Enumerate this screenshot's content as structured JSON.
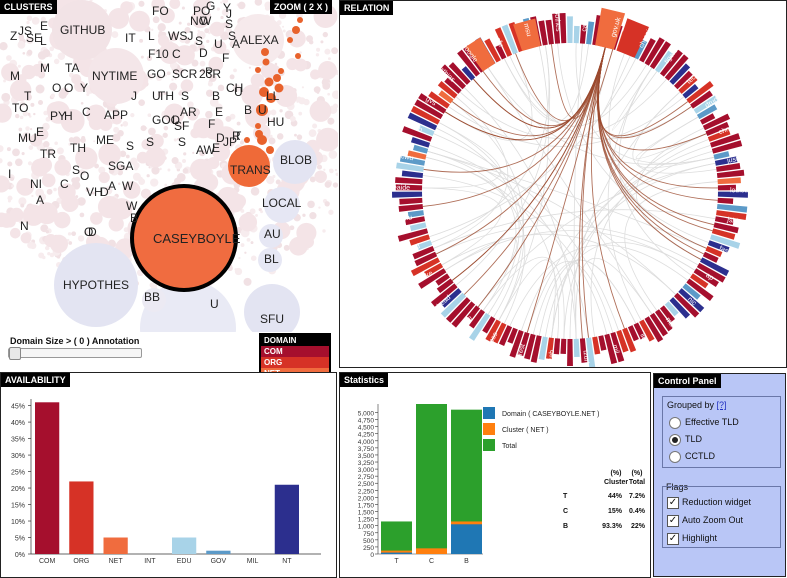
{
  "clusters": {
    "title": "CLUSTERS",
    "zoom_label": "ZOOM ( 2 X )",
    "slider_label": "Domain Size > ( 0 ) Annotation",
    "big_labels": [
      "GITHUB",
      "NYTIME",
      "ALEXA",
      "TRANS",
      "BLOB",
      "LOCAL",
      "CASEYBOYLE",
      "HYPOTHES",
      "AU",
      "BL",
      "BB",
      "SFU",
      "U"
    ],
    "small_labels": [
      "JS",
      "FO",
      "PO",
      "NO",
      "W",
      "G",
      "J",
      "S",
      "Z",
      "SE",
      "E",
      "L",
      "IT",
      "L",
      "WSJ",
      "S",
      "Y",
      "A",
      "F10",
      "C",
      "D",
      "U",
      "F",
      "S",
      "P",
      "M",
      "TA",
      "GO",
      "SCR",
      "23R",
      "M",
      "O",
      "O",
      "Y",
      "CH",
      "T",
      "TO",
      "U",
      "J",
      "TH",
      "S",
      "LL",
      "U",
      "B",
      "U",
      "APP",
      "L",
      "GOO",
      "AR",
      "E",
      "F",
      "B",
      "PY",
      "H",
      "C",
      "SF",
      "E",
      "HU",
      "D",
      "T",
      "ME",
      "S",
      "JP",
      "R",
      "S",
      "MU",
      "TH",
      "S",
      "AW",
      "TR",
      "S",
      "SGA",
      "A",
      "W",
      "O",
      "E",
      "I",
      "NI",
      "C",
      "A",
      "VH",
      "D",
      "N",
      "D",
      "W",
      "B",
      "O"
    ]
  },
  "legend": {
    "title": "DOMAIN",
    "items": [
      {
        "label": "COM",
        "color": "#a50f2d"
      },
      {
        "label": "ORG",
        "color": "#d63226"
      },
      {
        "label": "NET",
        "color": "#f06c3e"
      },
      {
        "label": "INT",
        "color": "#f9a65a"
      },
      {
        "label": "EDU",
        "color": "#a8d3e8"
      },
      {
        "label": "GOV",
        "color": "#5c9ac8"
      },
      {
        "label": "MIL",
        "color": "#2f5ea8"
      },
      {
        "label": "None TLD (NT)",
        "color": "#2c2f8e"
      }
    ]
  },
  "relation": {
    "title": "RELATION",
    "labels": [
      "caseyboyle",
      "gov.uk",
      "chronicle",
      "tigerskincalendar",
      "techguruzone",
      "drudge",
      "chmaginx",
      "justiniftheme",
      "louisdesmere",
      "jshint",
      "fastlane",
      "ap",
      "nic",
      "mac",
      "lib",
      "mil",
      "tzurlrewrite",
      "ucab",
      "pinterest",
      "wordpress",
      "dreamhostpre",
      "ahead",
      "duke",
      "harvard",
      "cmu",
      "univoteaide",
      "cwu",
      "hbb",
      "gvs",
      "mathias",
      "google",
      "sfu",
      "msu",
      "hypothes"
    ]
  },
  "availability": {
    "title": "AVAILABILITY"
  },
  "statistics": {
    "title": "Statistics",
    "legend": [
      "Domain ( CASEYBOYLE.NET )",
      "Cluster ( NET )",
      "Total"
    ],
    "legend_colors": [
      "#1f77b4",
      "#ff7f0e",
      "#2ca02c"
    ],
    "table_headers": [
      "(%)",
      "(%)"
    ],
    "table_subheaders": [
      "Cluster",
      "Total"
    ],
    "rows": [
      {
        "key": "T",
        "cluster": "44%",
        "total": "7.2%"
      },
      {
        "key": "C",
        "cluster": "15%",
        "total": "0.4%"
      },
      {
        "key": "B",
        "cluster": "93.3%",
        "total": "22%"
      }
    ]
  },
  "control_panel": {
    "title": "Control Panel",
    "grouped_by": "Grouped by",
    "help": "[?]",
    "options": [
      {
        "label": "Effective TLD",
        "selected": false
      },
      {
        "label": "TLD",
        "selected": true
      },
      {
        "label": "CCTLD",
        "selected": false
      }
    ],
    "flags_label": "Flags",
    "flags": [
      {
        "label": "Reduction widget",
        "checked": true
      },
      {
        "label": "Auto Zoom Out",
        "checked": true
      },
      {
        "label": "Highlight",
        "checked": true
      }
    ]
  },
  "chart_data": [
    {
      "type": "bar",
      "name": "availability",
      "categories": [
        "COM",
        "ORG",
        "NET",
        "INT",
        "EDU",
        "GOV",
        "MIL",
        "NT"
      ],
      "values": [
        46,
        22,
        5,
        0,
        5,
        1,
        0,
        21
      ],
      "colors": [
        "#a50f2d",
        "#d63226",
        "#f06c3e",
        "#f9a65a",
        "#a8d3e8",
        "#5c9ac8",
        "#2f5ea8",
        "#2c2f8e"
      ],
      "yticks": [
        "0%",
        "5%",
        "10%",
        "15%",
        "20%",
        "25%",
        "30%",
        "35%",
        "40%",
        "45%"
      ],
      "ylim": [
        0,
        47
      ]
    },
    {
      "type": "bar",
      "name": "statistics",
      "categories": [
        "T",
        "C",
        "B"
      ],
      "series": [
        {
          "name": "Domain ( CASEYBOYLE.NET )",
          "values": [
            50,
            0,
            1050
          ]
        },
        {
          "name": "Cluster ( NET )",
          "values": [
            120,
            200,
            1150
          ]
        },
        {
          "name": "Total",
          "values": [
            1150,
            5300,
            5100
          ]
        }
      ],
      "yticks": [
        "0",
        "250",
        "500",
        "750",
        "1,000",
        "1,250",
        "1,500",
        "1,750",
        "2,000",
        "2,250",
        "2,500",
        "2,750",
        "3,000",
        "3,250",
        "3,500",
        "3,750",
        "4,000",
        "4,250",
        "4,500",
        "4,750",
        "5,000"
      ],
      "ylim": [
        0,
        5300
      ]
    }
  ]
}
